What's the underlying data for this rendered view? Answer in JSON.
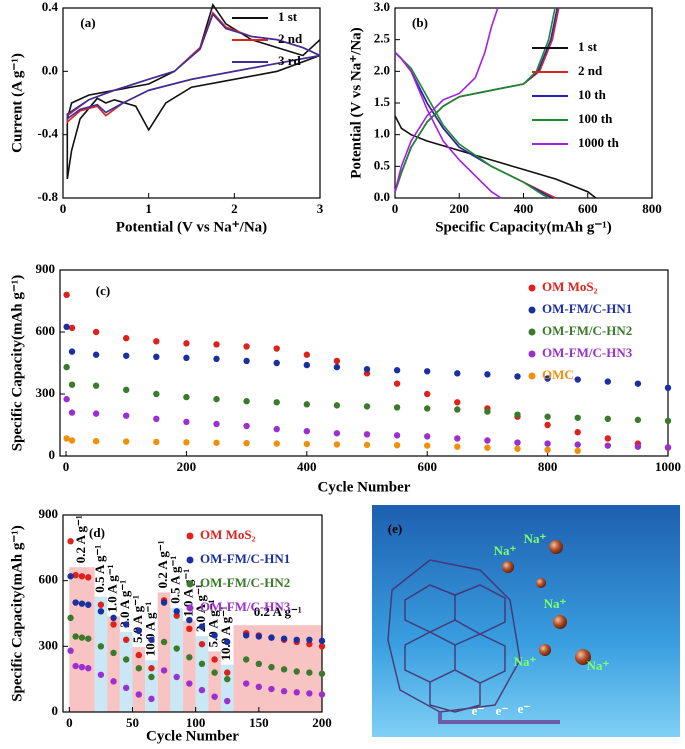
{
  "chart_data": [
    {
      "type": "line",
      "panel_label": "(a)",
      "xlabel": "Potential (V vs Na⁺/Na)",
      "ylabel": "Current (A g⁻¹)",
      "xlim": [
        0,
        3
      ],
      "ylim": [
        -0.8,
        0.4
      ],
      "xticks": [
        0,
        1,
        2,
        3
      ],
      "yticks": [
        -0.8,
        -0.4,
        {
          "value": 0,
          "label": "0.0"
        },
        0.4
      ],
      "legend": "upper right",
      "series": [
        {
          "name": "1 st",
          "color": "#111111",
          "x": [
            3.0,
            2.5,
            2.0,
            1.5,
            1.2,
            1.0,
            0.85,
            0.6,
            0.5,
            0.4,
            0.2,
            0.1,
            0.05,
            0.05,
            0.1,
            0.3,
            0.6,
            1.0,
            1.3,
            1.6,
            1.75,
            1.9,
            2.2,
            2.5,
            2.8,
            3.0
          ],
          "values": [
            0.1,
            0.0,
            -0.05,
            -0.1,
            -0.2,
            -0.37,
            -0.22,
            -0.18,
            -0.2,
            -0.17,
            -0.3,
            -0.5,
            -0.68,
            -0.3,
            -0.2,
            -0.15,
            -0.12,
            -0.08,
            0.0,
            0.15,
            0.42,
            0.3,
            0.2,
            0.15,
            0.1,
            0.2
          ]
        },
        {
          "name": "2 nd",
          "color": "#d8261e",
          "x": [
            3.0,
            2.5,
            2.0,
            1.5,
            1.0,
            0.7,
            0.5,
            0.4,
            0.2,
            0.05,
            0.05,
            0.3,
            0.6,
            1.0,
            1.3,
            1.6,
            1.75,
            1.9,
            2.2,
            2.5,
            2.8,
            3.0
          ],
          "values": [
            0.1,
            0.05,
            0.0,
            -0.05,
            -0.12,
            -0.2,
            -0.28,
            -0.22,
            -0.25,
            -0.32,
            -0.28,
            -0.18,
            -0.12,
            -0.05,
            0.0,
            0.15,
            0.37,
            0.28,
            0.22,
            0.2,
            0.15,
            0.1
          ]
        },
        {
          "name": "3 rd",
          "color": "#3b2f9e",
          "x": [
            3.0,
            2.5,
            2.0,
            1.5,
            1.0,
            0.7,
            0.5,
            0.4,
            0.2,
            0.05,
            0.05,
            0.3,
            0.6,
            1.0,
            1.3,
            1.6,
            1.75,
            1.9,
            2.2,
            2.5,
            2.8,
            3.0
          ],
          "values": [
            0.1,
            0.05,
            0.0,
            -0.05,
            -0.12,
            -0.2,
            -0.26,
            -0.21,
            -0.24,
            -0.3,
            -0.27,
            -0.18,
            -0.12,
            -0.05,
            0.0,
            0.14,
            0.36,
            0.27,
            0.22,
            0.2,
            0.15,
            0.1
          ]
        }
      ]
    },
    {
      "type": "line",
      "panel_label": "(b)",
      "xlabel": "Specific Capacity(mAh g⁻¹)",
      "ylabel": "Potential (V vs Na⁺/Na)",
      "xlim": [
        0,
        800
      ],
      "ylim": [
        0,
        3
      ],
      "xticks": [
        0,
        200,
        400,
        600,
        800
      ],
      "yticks": [
        {
          "value": 0,
          "label": "0.0"
        },
        0.5,
        {
          "value": 1,
          "label": "1.0"
        },
        1.5,
        {
          "value": 2,
          "label": "2.0"
        },
        2.5,
        {
          "value": 3,
          "label": "3.0"
        }
      ],
      "legend": "right",
      "series": [
        {
          "name": "1 st",
          "color": "#111111",
          "x": [
            0,
            20,
            50,
            100,
            200,
            300,
            400,
            500,
            600,
            625
          ],
          "values": [
            1.3,
            1.1,
            1.0,
            0.9,
            0.75,
            0.6,
            0.45,
            0.3,
            0.1,
            0.0
          ]
        },
        {
          "name": "2 nd",
          "color": "#d8261e",
          "x": [
            0,
            20,
            50,
            100,
            150,
            200,
            300,
            400,
            480,
            500,
            null,
            0,
            20,
            50,
            100,
            150,
            200,
            300,
            400,
            450,
            490,
            510
          ],
          "values": [
            2.3,
            2.2,
            2.0,
            1.5,
            1.1,
            0.8,
            0.5,
            0.25,
            0.05,
            0.0,
            null,
            0.1,
            0.4,
            0.8,
            1.2,
            1.45,
            1.6,
            1.7,
            1.8,
            2.0,
            2.5,
            3.0
          ]
        },
        {
          "name": "10 th",
          "color": "#2323b8",
          "x": [
            0,
            20,
            50,
            100,
            150,
            200,
            300,
            400,
            470,
            490,
            null,
            0,
            20,
            50,
            100,
            150,
            200,
            300,
            400,
            445,
            485,
            505
          ],
          "values": [
            2.3,
            2.2,
            2.0,
            1.5,
            1.1,
            0.8,
            0.5,
            0.25,
            0.05,
            0.0,
            null,
            0.1,
            0.4,
            0.8,
            1.2,
            1.45,
            1.6,
            1.7,
            1.8,
            2.0,
            2.5,
            3.0
          ]
        },
        {
          "name": "100 th",
          "color": "#1f8a2a",
          "x": [
            0,
            20,
            50,
            100,
            150,
            200,
            300,
            400,
            460,
            480,
            null,
            0,
            20,
            50,
            100,
            150,
            200,
            300,
            400,
            440,
            478,
            498
          ],
          "values": [
            2.3,
            2.2,
            2.05,
            1.6,
            1.15,
            0.85,
            0.5,
            0.25,
            0.05,
            0.0,
            null,
            0.1,
            0.4,
            0.8,
            1.2,
            1.45,
            1.6,
            1.7,
            1.8,
            2.0,
            2.5,
            3.0
          ]
        },
        {
          "name": "1000 th",
          "color": "#a020e8",
          "x": [
            0,
            20,
            50,
            100,
            150,
            200,
            250,
            300,
            330,
            null,
            0,
            20,
            50,
            100,
            150,
            200,
            250,
            280,
            300,
            320
          ],
          "values": [
            2.3,
            2.2,
            2.0,
            1.4,
            0.9,
            0.6,
            0.35,
            0.1,
            0.0,
            null,
            0.1,
            0.5,
            0.9,
            1.3,
            1.55,
            1.65,
            1.9,
            2.3,
            2.7,
            3.0
          ]
        }
      ]
    },
    {
      "type": "scatter",
      "panel_label": "(c)",
      "xlabel": "Cycle Number",
      "ylabel": "Specific Capacity(mAh g⁻¹)",
      "xlim": [
        -10,
        1000
      ],
      "ylim": [
        0,
        900
      ],
      "xticks": [
        0,
        200,
        400,
        600,
        800,
        1000
      ],
      "yticks": [
        0,
        300,
        600,
        900
      ],
      "legend": "upper right",
      "x": [
        1,
        10,
        50,
        100,
        150,
        200,
        250,
        300,
        350,
        400,
        450,
        500,
        550,
        600,
        650,
        700,
        750,
        800,
        850,
        900,
        950,
        1000
      ],
      "series": [
        {
          "name": "OM MoS₂",
          "color": "#e0201b",
          "values": [
            780,
            620,
            600,
            570,
            555,
            545,
            540,
            530,
            520,
            490,
            460,
            400,
            350,
            300,
            260,
            230,
            190,
            150,
            115,
            85,
            60,
            40
          ]
        },
        {
          "name": "OM-FM/C-HN1",
          "color": "#1a2fa0",
          "values": [
            625,
            505,
            490,
            485,
            480,
            475,
            470,
            460,
            450,
            440,
            430,
            420,
            415,
            410,
            400,
            395,
            385,
            375,
            370,
            360,
            350,
            330
          ]
        },
        {
          "name": "OM-FM/C-HN2",
          "color": "#3a7a2a",
          "values": [
            430,
            345,
            340,
            320,
            300,
            285,
            275,
            265,
            260,
            250,
            245,
            240,
            235,
            230,
            225,
            215,
            200,
            190,
            185,
            180,
            175,
            170
          ]
        },
        {
          "name": "OM-FM/C-HN3",
          "color": "#9b2fd0",
          "values": [
            275,
            210,
            205,
            195,
            180,
            165,
            155,
            145,
            130,
            120,
            110,
            105,
            100,
            95,
            85,
            75,
            65,
            60,
            55,
            50,
            45,
            42
          ]
        },
        {
          "name": "OMC",
          "color": "#f0900a",
          "values": [
            85,
            75,
            72,
            70,
            68,
            66,
            64,
            62,
            60,
            58,
            56,
            54,
            52,
            50,
            45,
            40,
            35,
            30,
            25,
            null,
            null,
            null
          ]
        }
      ]
    },
    {
      "type": "scatter",
      "panel_label": "(d)",
      "xlabel": "Cycle Number",
      "ylabel": "Specific Capacity(mAh g⁻¹)",
      "xlim": [
        -5,
        200
      ],
      "ylim": [
        0,
        900
      ],
      "xticks": [
        0,
        50,
        100,
        150,
        200
      ],
      "yticks": [
        0,
        300,
        600,
        900
      ],
      "legend": "upper right",
      "x": [
        1,
        5,
        10,
        15,
        25,
        35,
        45,
        55,
        65,
        75,
        85,
        95,
        105,
        115,
        125,
        140,
        150,
        160,
        170,
        180,
        190,
        200
      ],
      "series": [
        {
          "name": "OM MoS₂",
          "color": "#e0201b",
          "values": [
            780,
            625,
            620,
            615,
            490,
            400,
            330,
            260,
            200,
            510,
            440,
            380,
            310,
            240,
            180,
            360,
            350,
            340,
            330,
            320,
            310,
            300
          ]
        },
        {
          "name": "OM-FM/C-HN1",
          "color": "#1a2fa0",
          "values": [
            620,
            500,
            495,
            490,
            460,
            430,
            400,
            370,
            330,
            500,
            460,
            420,
            390,
            350,
            320,
            350,
            345,
            340,
            335,
            330,
            330,
            325
          ]
        },
        {
          "name": "OM-FM/C-HN2",
          "color": "#3a7a2a",
          "values": [
            430,
            345,
            340,
            335,
            300,
            270,
            240,
            200,
            160,
            320,
            290,
            250,
            220,
            180,
            150,
            240,
            220,
            205,
            195,
            185,
            180,
            175
          ]
        },
        {
          "name": "OM-FM/C-HN3",
          "color": "#9b2fd0",
          "values": [
            280,
            210,
            205,
            200,
            170,
            140,
            110,
            80,
            60,
            190,
            160,
            130,
            100,
            70,
            50,
            130,
            115,
            105,
            95,
            90,
            85,
            80
          ]
        }
      ],
      "rate_segments": [
        {
          "label": "0.2 A g⁻¹",
          "start": 0,
          "end": 20
        },
        {
          "label": "0.5 A g⁻¹",
          "start": 20,
          "end": 30
        },
        {
          "label": "1.0 A g⁻¹",
          "start": 30,
          "end": 40
        },
        {
          "label": "2.0 A g⁻¹",
          "start": 40,
          "end": 50
        },
        {
          "label": "5.0 A g⁻¹",
          "start": 50,
          "end": 60
        },
        {
          "label": "10.0 A g⁻¹",
          "start": 60,
          "end": 70
        },
        {
          "label": "0.2 A g⁻¹",
          "start": 70,
          "end": 80
        },
        {
          "label": "0.5 A g⁻¹",
          "start": 80,
          "end": 90
        },
        {
          "label": "1.0 A g⁻¹",
          "start": 90,
          "end": 100
        },
        {
          "label": "2.0 A g⁻¹",
          "start": 100,
          "end": 110
        },
        {
          "label": "5.0 A g⁻¹",
          "start": 110,
          "end": 120
        },
        {
          "label": "10.0 A g⁻¹",
          "start": 120,
          "end": 130
        },
        {
          "label": "0.2 A g⁻¹",
          "start": 130,
          "end": 200
        }
      ]
    }
  ],
  "illustration": {
    "panel_label": "(e)",
    "ion_labels": [
      "Na⁺",
      "Na⁺",
      "Na⁺",
      "Na⁺",
      "Na⁺"
    ],
    "electron_labels": [
      "e⁻",
      "e⁻",
      "e⁻"
    ]
  }
}
